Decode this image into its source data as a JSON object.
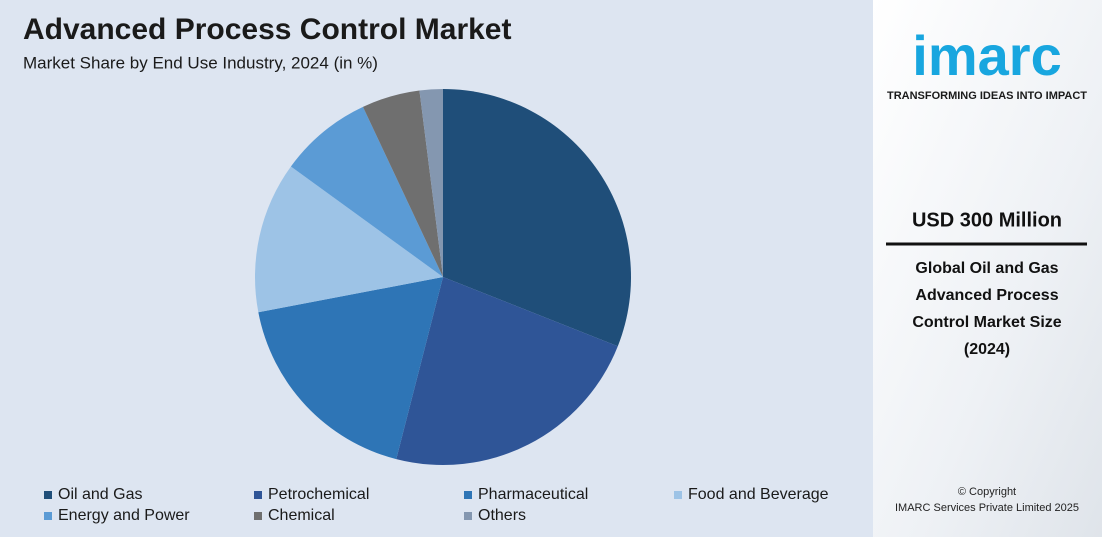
{
  "chart_data": {
    "type": "pie",
    "title": "Advanced Process Control Market",
    "subtitle": "Market Share by End Use Industry, 2024 (in %)",
    "categories": [
      "Oil and Gas",
      "Petrochemical",
      "Pharmaceutical",
      "Food and Beverage",
      "Energy and Power",
      "Chemical",
      "Others"
    ],
    "values": [
      31,
      23,
      18,
      13,
      8,
      5,
      2
    ],
    "colors": [
      "#1f4e79",
      "#2f5597",
      "#2e75b6",
      "#9dc3e6",
      "#5b9bd5",
      "#6f6f6f",
      "#8497b0"
    ],
    "legend": "bottom"
  },
  "sidebar": {
    "logo": "imarc",
    "tagline": "TRANSFORMING IDEAS INTO IMPACT",
    "headline": "USD 300 Million",
    "description": [
      "Global Oil and Gas",
      "Advanced Process",
      "Control Market Size",
      "(2024)"
    ],
    "copyright": [
      "© Copyright",
      "IMARC Services Private Limited 2025"
    ]
  }
}
